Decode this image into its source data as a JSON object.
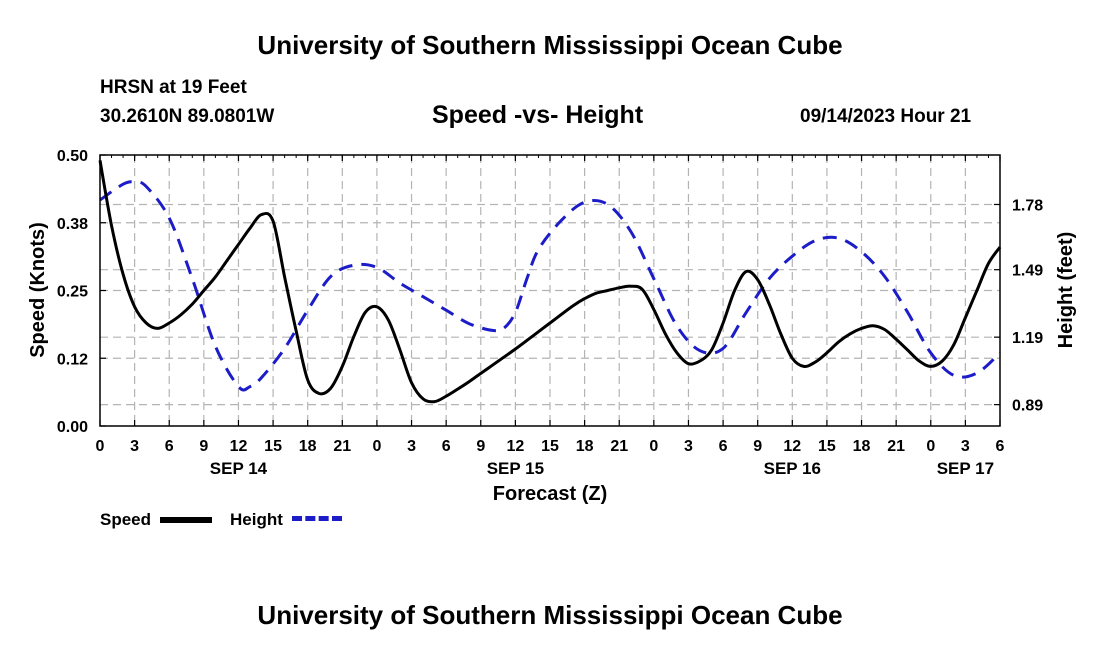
{
  "header": {
    "title": "University of Southern Mississippi Ocean Cube",
    "station": "HRSN at 19 Feet",
    "coords": "30.2610N  89.0801W",
    "timestamp": "09/14/2023 Hour 21"
  },
  "footer": {
    "title": "University of Southern Mississippi Ocean Cube"
  },
  "legend": {
    "speed_label": "Speed",
    "height_label": "Height"
  },
  "chart_data": {
    "type": "line",
    "title": "Speed -vs- Height",
    "xlabel": "Forecast (Z)",
    "ylabel_left": "Speed (Knots)",
    "ylabel_right": "Height (feet)",
    "x_range_hours": [
      0,
      78
    ],
    "x_tick_labels": [
      "0",
      "3",
      "6",
      "9",
      "12",
      "15",
      "18",
      "21",
      "0",
      "3",
      "6",
      "9",
      "12",
      "15",
      "18",
      "21",
      "0",
      "3",
      "6",
      "9",
      "12",
      "15",
      "18",
      "21",
      "0",
      "3",
      "6"
    ],
    "date_labels": [
      {
        "label": "SEP 14",
        "hour": 12
      },
      {
        "label": "SEP 15",
        "hour": 36
      },
      {
        "label": "SEP 16",
        "hour": 60
      },
      {
        "label": "SEP 17",
        "hour": 75
      }
    ],
    "y_left": {
      "range": [
        0,
        0.5
      ],
      "ticks": [
        0.0,
        0.125,
        0.25,
        0.375,
        0.5
      ],
      "tick_labels": [
        "0.00",
        "0.12",
        "0.25",
        "0.38",
        "0.50"
      ]
    },
    "y_right": {
      "range": [
        0.795,
        2.0
      ],
      "ticks": [
        0.89,
        1.19,
        1.49,
        1.78
      ],
      "tick_labels": [
        "0.89",
        "1.19",
        "1.49",
        "1.78"
      ]
    },
    "grid": true,
    "series": [
      {
        "name": "Speed",
        "axis": "left",
        "color": "#000000",
        "style": "solid",
        "x": [
          0,
          1,
          2,
          3,
          4,
          5,
          6,
          7,
          8,
          9,
          10,
          11,
          12,
          13,
          14,
          15,
          16,
          17,
          18,
          19,
          20,
          21,
          22,
          23,
          24,
          25,
          26,
          27,
          28,
          29,
          30,
          31,
          32,
          33,
          34,
          35,
          36,
          37,
          38,
          39,
          40,
          41,
          42,
          43,
          44,
          45,
          46,
          47,
          48,
          49,
          50,
          51,
          52,
          53,
          54,
          55,
          56,
          57,
          58,
          59,
          60,
          61,
          62,
          63,
          64,
          65,
          66,
          67,
          68,
          69,
          70,
          71,
          72,
          73,
          74,
          75,
          76,
          77,
          78
        ],
        "values": [
          0.49,
          0.37,
          0.28,
          0.22,
          0.19,
          0.18,
          0.19,
          0.205,
          0.225,
          0.25,
          0.275,
          0.305,
          0.335,
          0.365,
          0.39,
          0.378,
          0.275,
          0.175,
          0.085,
          0.06,
          0.07,
          0.11,
          0.165,
          0.21,
          0.22,
          0.195,
          0.14,
          0.08,
          0.05,
          0.045,
          0.055,
          0.068,
          0.082,
          0.097,
          0.112,
          0.127,
          0.142,
          0.158,
          0.174,
          0.19,
          0.206,
          0.222,
          0.235,
          0.245,
          0.25,
          0.255,
          0.258,
          0.252,
          0.215,
          0.17,
          0.135,
          0.115,
          0.12,
          0.14,
          0.19,
          0.25,
          0.285,
          0.27,
          0.225,
          0.17,
          0.125,
          0.11,
          0.118,
          0.135,
          0.155,
          0.17,
          0.18,
          0.185,
          0.178,
          0.16,
          0.14,
          0.12,
          0.11,
          0.12,
          0.15,
          0.2,
          0.25,
          0.3,
          0.33
        ]
      },
      {
        "name": "Height",
        "axis": "right",
        "color": "#1c1cc8",
        "style": "dashed",
        "x": [
          0,
          2,
          3,
          4,
          6,
          8,
          10,
          12,
          13,
          14,
          16,
          18,
          20,
          22,
          24,
          26,
          28,
          30,
          32,
          34,
          35,
          36,
          37,
          38,
          40,
          42,
          44,
          46,
          48,
          50,
          52,
          54,
          56,
          58,
          60,
          62,
          64,
          66,
          68,
          70,
          72,
          74,
          76,
          78
        ],
        "values": [
          1.8,
          1.87,
          1.88,
          1.86,
          1.72,
          1.45,
          1.15,
          0.97,
          0.97,
          1.01,
          1.14,
          1.31,
          1.46,
          1.51,
          1.5,
          1.43,
          1.37,
          1.31,
          1.25,
          1.22,
          1.23,
          1.3,
          1.45,
          1.58,
          1.71,
          1.79,
          1.78,
          1.66,
          1.45,
          1.24,
          1.13,
          1.14,
          1.3,
          1.45,
          1.55,
          1.62,
          1.63,
          1.57,
          1.46,
          1.3,
          1.12,
          1.02,
          1.03,
          1.12
        ]
      }
    ]
  }
}
